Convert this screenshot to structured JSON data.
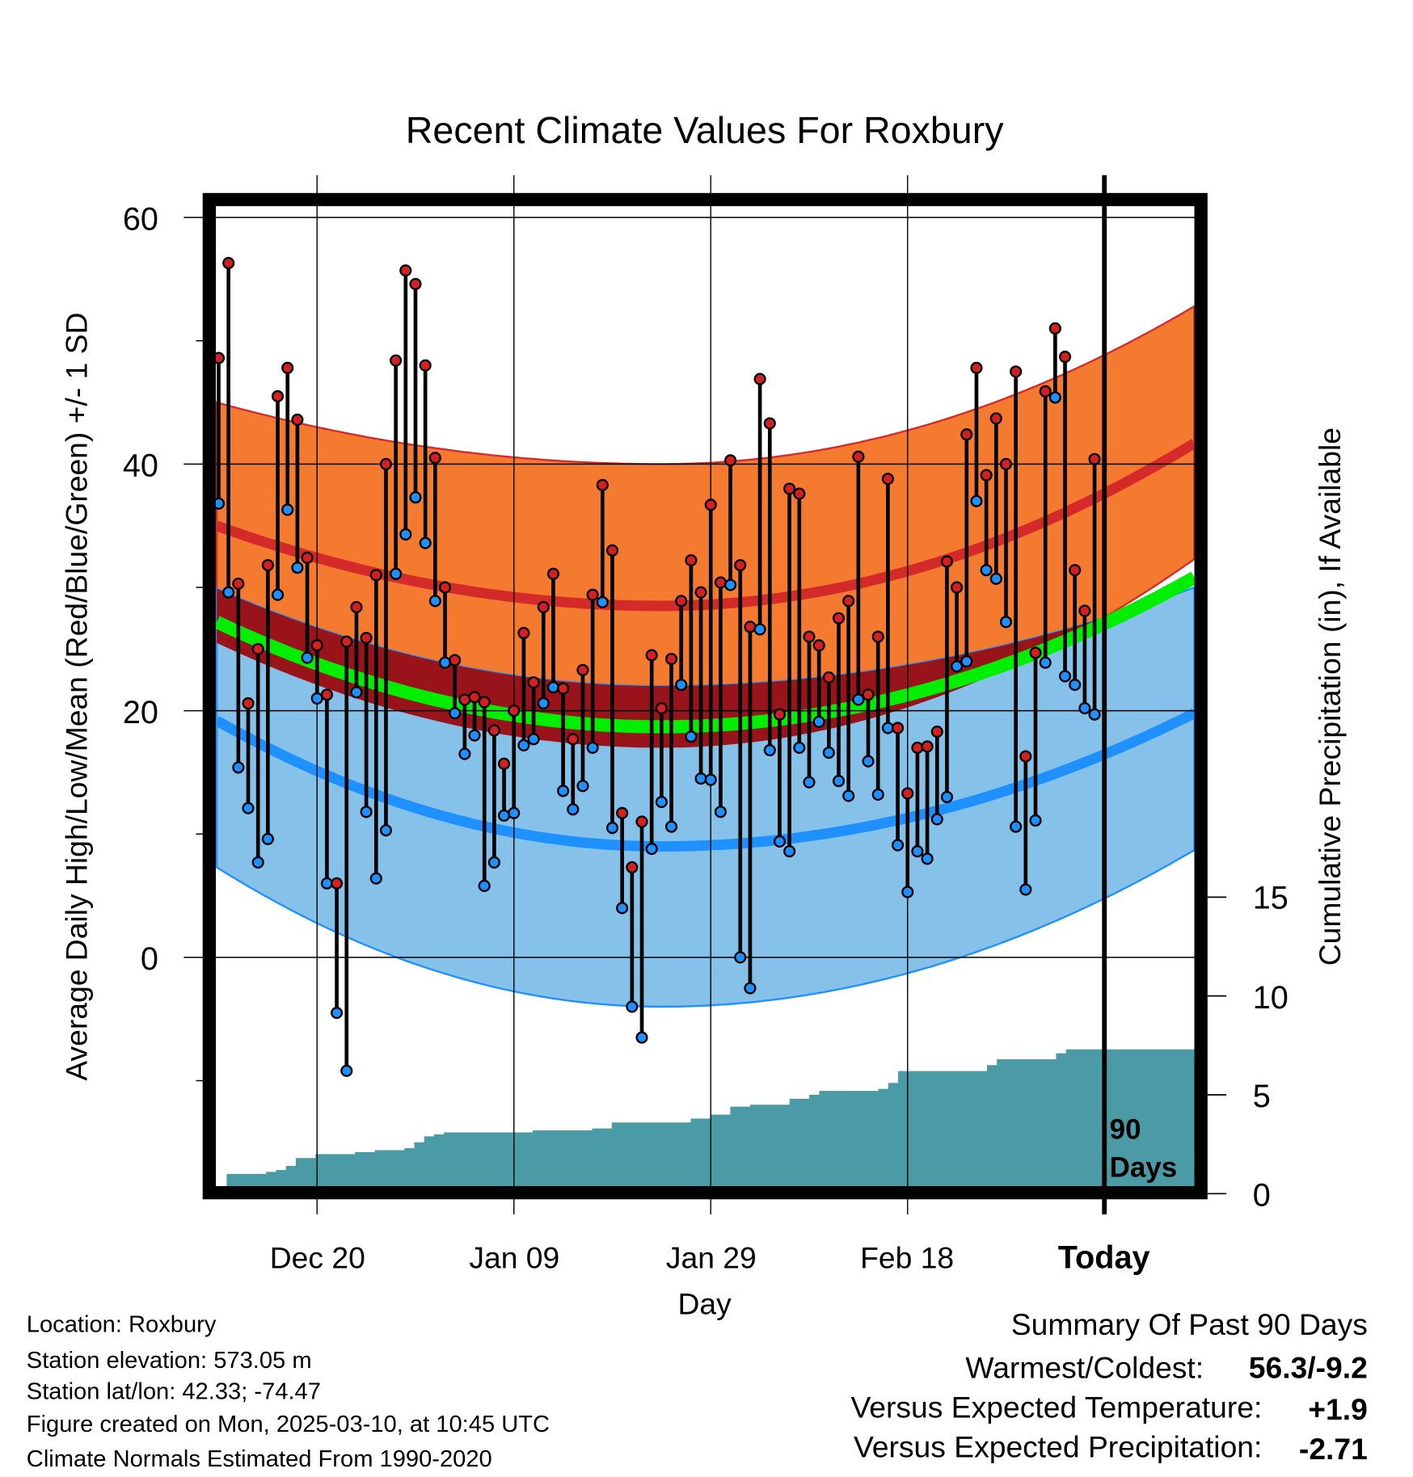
{
  "chart_data": {
    "type": "line",
    "title": "Recent Climate Values For Roxbury",
    "xlabel": "Day",
    "ylabel": "Average Daily High/Low/Mean (Red/Blue/Green) +/- 1 SD",
    "y2label": "Cumulative Precipitation (in), If Available",
    "ylim": [
      -19,
      62
    ],
    "y2lim": [
      0,
      50
    ],
    "yticks": [
      "60",
      "40",
      "20",
      "0"
    ],
    "y2ticks": [
      "15",
      "10",
      "5",
      "0"
    ],
    "xticks": [
      "Dec 20",
      "Jan 09",
      "Jan 29",
      "Feb 18",
      "Today"
    ],
    "xtick_days": [
      10,
      30,
      50,
      70,
      90
    ],
    "today_label_1": "90",
    "today_label_2": "Days",
    "days_shown": 100,
    "highs": [
      48.6,
      56.3,
      30.3,
      20.6,
      25.0,
      31.8,
      45.5,
      47.8,
      43.6,
      32.4,
      25.3,
      21.3,
      6.0,
      25.6,
      28.4,
      25.9,
      31.0,
      40.0,
      48.4,
      55.7,
      54.6,
      48.0,
      40.5,
      30.0,
      24.1,
      20.9,
      21.1,
      20.7,
      18.4,
      15.7,
      20.0,
      26.3,
      22.3,
      28.4,
      31.1,
      21.8,
      17.7,
      23.3,
      29.4,
      38.3,
      33.0,
      11.7,
      7.3,
      11.0,
      24.5,
      20.2,
      24.2,
      28.9,
      32.2,
      29.6,
      36.7,
      30.4,
      40.3,
      31.8,
      26.8,
      46.9,
      43.3,
      19.7,
      38.0,
      37.6,
      26.0,
      25.3,
      22.7,
      27.5,
      28.9,
      40.6,
      21.3,
      26.0,
      38.8,
      18.6,
      13.3,
      17.0,
      17.1,
      18.3,
      32.1,
      30.0,
      42.4,
      47.8,
      39.1,
      43.7,
      40.0,
      47.5,
      16.3,
      24.7,
      45.9,
      51.0,
      48.7,
      31.4,
      28.1,
      40.4
    ],
    "lows": [
      36.8,
      29.6,
      15.4,
      12.1,
      7.7,
      9.6,
      29.4,
      36.3,
      31.6,
      24.3,
      21.0,
      6.0,
      -4.5,
      -9.2,
      21.5,
      11.8,
      6.4,
      10.3,
      31.1,
      34.3,
      37.3,
      33.6,
      28.9,
      23.9,
      19.8,
      16.5,
      18.0,
      5.8,
      7.7,
      11.5,
      11.7,
      17.2,
      17.7,
      20.6,
      21.9,
      13.5,
      12.0,
      13.9,
      17.0,
      28.8,
      10.5,
      4.0,
      -4.0,
      -6.5,
      8.8,
      12.6,
      10.6,
      22.1,
      17.9,
      14.5,
      14.4,
      11.8,
      30.2,
      0.0,
      -2.5,
      26.6,
      16.8,
      9.4,
      8.6,
      17.0,
      14.2,
      19.1,
      16.6,
      14.3,
      13.1,
      20.9,
      15.9,
      13.2,
      18.6,
      9.1,
      5.3,
      8.6,
      8.0,
      11.2,
      13.0,
      23.6,
      24.0,
      37.0,
      31.4,
      30.7,
      27.2,
      10.6,
      5.5,
      11.1,
      23.9,
      45.4,
      22.8,
      22.1,
      20.2,
      19.7
    ],
    "normals": {
      "min_day": 45,
      "high_plus_sd": {
        "start": 45.0,
        "min": 40.0,
        "end": 52.8
      },
      "high_mean": {
        "start": 35.0,
        "min": 28.5,
        "end": 41.7
      },
      "high_minus_sd": {
        "start": 25.5,
        "min": 17.0,
        "end": 32.3
      },
      "mean": {
        "start": 27.2,
        "min": 18.7,
        "end": 30.8
      },
      "low_plus_sd": {
        "start": 29.9,
        "min": 22.0,
        "end": 30.0
      },
      "low_mean": {
        "start": 19.2,
        "min": 9.0,
        "end": 19.8
      },
      "low_minus_sd": {
        "start": 7.3,
        "min": -4.0,
        "end": 8.7
      }
    },
    "precip_cumulative_steps": [
      [
        0,
        0.0
      ],
      [
        1,
        1.0
      ],
      [
        5,
        1.1
      ],
      [
        6,
        1.2
      ],
      [
        7,
        1.4
      ],
      [
        8,
        1.8
      ],
      [
        10,
        2.0
      ],
      [
        14,
        2.1
      ],
      [
        16,
        2.2
      ],
      [
        19,
        2.3
      ],
      [
        20,
        2.6
      ],
      [
        21,
        2.9
      ],
      [
        22,
        3.0
      ],
      [
        23,
        3.1
      ],
      [
        32,
        3.2
      ],
      [
        38,
        3.3
      ],
      [
        40,
        3.6
      ],
      [
        48,
        3.8
      ],
      [
        50,
        4.0
      ],
      [
        52,
        4.4
      ],
      [
        54,
        4.5
      ],
      [
        58,
        4.8
      ],
      [
        60,
        5.0
      ],
      [
        61,
        5.2
      ],
      [
        67,
        5.3
      ],
      [
        68,
        5.6
      ],
      [
        69,
        6.2
      ],
      [
        78,
        6.5
      ],
      [
        79,
        6.8
      ],
      [
        85,
        7.1
      ],
      [
        86,
        7.3
      ],
      [
        99,
        7.3
      ]
    ],
    "colors": {
      "high_band": "#F47A30",
      "overlap_band": "#99131B",
      "high_line": "#D42A2A",
      "mean_line": "#00EE00",
      "low_band": "#85C1E9",
      "low_line": "#1E90FF",
      "precip": "#4A9BA5",
      "high_point": "#D42020",
      "low_point": "#1E90FF"
    }
  },
  "info": {
    "location": "Location: Roxbury",
    "elevation": "Station elevation: 573.05 m",
    "latlon": "Station lat/lon: 42.33; -74.47",
    "created": "Figure created on Mon, 2025-03-10, at 10:45 UTC",
    "normals": "Climate Normals Estimated From 1990-2020"
  },
  "summary": {
    "title": "Summary Of Past 90 Days",
    "warm_cold_label": "Warmest/Coldest:",
    "warm_cold_value": "56.3/-9.2",
    "temp_label": "Versus Expected Temperature:",
    "temp_value": "+1.9",
    "temp_color": "#D42020",
    "precip_label": "Versus Expected Precipitation:",
    "precip_value": "-2.71",
    "precip_color": "#A0522D"
  }
}
